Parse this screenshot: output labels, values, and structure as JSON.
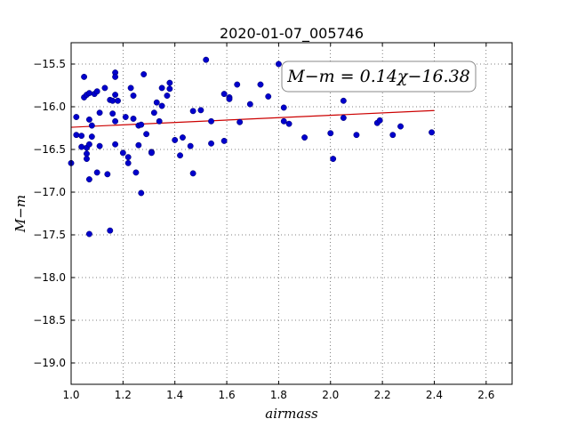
{
  "chart_data": {
    "type": "scatter",
    "title": "2020-01-07_005746",
    "xlabel": "airmass",
    "ylabel": "M−m",
    "xlim": [
      1.0,
      2.7
    ],
    "ylim": [
      -19.25,
      -15.25
    ],
    "xticks": [
      "1.0",
      "1.2",
      "1.4",
      "1.6",
      "1.8",
      "2.0",
      "2.2",
      "2.4",
      "2.6"
    ],
    "yticks": [
      "−15.5",
      "−16.0",
      "−16.5",
      "−17.0",
      "−17.5",
      "−18.0",
      "−18.5",
      "−19.0"
    ],
    "grid": true,
    "point_color": "#0000cc",
    "fit_color": "#cc0000",
    "annotation": "M−m = 0.14χ−16.38",
    "fit": {
      "slope": 0.14,
      "intercept": -16.38,
      "x_range": [
        1.0,
        2.4
      ]
    },
    "points": [
      [
        1.0,
        -16.66
      ],
      [
        1.02,
        -16.12
      ],
      [
        1.02,
        -16.33
      ],
      [
        1.04,
        -16.34
      ],
      [
        1.04,
        -16.47
      ],
      [
        1.05,
        -15.65
      ],
      [
        1.05,
        -15.89
      ],
      [
        1.06,
        -15.86
      ],
      [
        1.06,
        -16.48
      ],
      [
        1.06,
        -16.55
      ],
      [
        1.06,
        -16.61
      ],
      [
        1.07,
        -15.84
      ],
      [
        1.07,
        -16.15
      ],
      [
        1.07,
        -16.44
      ],
      [
        1.07,
        -16.85
      ],
      [
        1.08,
        -16.22
      ],
      [
        1.08,
        -16.35
      ],
      [
        1.07,
        -17.49
      ],
      [
        1.09,
        -15.85
      ],
      [
        1.1,
        -15.82
      ],
      [
        1.1,
        -16.77
      ],
      [
        1.11,
        -16.07
      ],
      [
        1.11,
        -16.46
      ],
      [
        1.13,
        -15.78
      ],
      [
        1.14,
        -16.79
      ],
      [
        1.15,
        -15.92
      ],
      [
        1.15,
        -17.45
      ],
      [
        1.16,
        -16.08
      ],
      [
        1.16,
        -15.93
      ],
      [
        1.17,
        -15.6
      ],
      [
        1.17,
        -15.65
      ],
      [
        1.17,
        -15.86
      ],
      [
        1.17,
        -16.17
      ],
      [
        1.17,
        -16.44
      ],
      [
        1.18,
        -15.93
      ],
      [
        1.2,
        -16.54
      ],
      [
        1.21,
        -16.12
      ],
      [
        1.22,
        -16.59
      ],
      [
        1.22,
        -16.66
      ],
      [
        1.23,
        -15.78
      ],
      [
        1.24,
        -15.87
      ],
      [
        1.24,
        -16.14
      ],
      [
        1.25,
        -16.77
      ],
      [
        1.26,
        -16.22
      ],
      [
        1.26,
        -16.45
      ],
      [
        1.27,
        -16.21
      ],
      [
        1.27,
        -17.01
      ],
      [
        1.28,
        -15.62
      ],
      [
        1.29,
        -16.32
      ],
      [
        1.31,
        -16.53
      ],
      [
        1.31,
        -16.54
      ],
      [
        1.32,
        -16.07
      ],
      [
        1.33,
        -15.95
      ],
      [
        1.34,
        -16.17
      ],
      [
        1.35,
        -15.99
      ],
      [
        1.35,
        -15.78
      ],
      [
        1.37,
        -15.87
      ],
      [
        1.38,
        -15.79
      ],
      [
        1.38,
        -15.72
      ],
      [
        1.4,
        -16.39
      ],
      [
        1.42,
        -16.57
      ],
      [
        1.43,
        -16.36
      ],
      [
        1.46,
        -16.46
      ],
      [
        1.47,
        -16.78
      ],
      [
        1.47,
        -16.05
      ],
      [
        1.5,
        -16.04
      ],
      [
        1.52,
        -15.45
      ],
      [
        1.54,
        -16.43
      ],
      [
        1.54,
        -16.17
      ],
      [
        1.59,
        -15.85
      ],
      [
        1.59,
        -16.4
      ],
      [
        1.61,
        -15.89
      ],
      [
        1.61,
        -15.91
      ],
      [
        1.64,
        -15.74
      ],
      [
        1.65,
        -16.18
      ],
      [
        1.69,
        -15.97
      ],
      [
        1.73,
        -15.74
      ],
      [
        1.76,
        -15.88
      ],
      [
        1.8,
        -15.5
      ],
      [
        1.82,
        -16.17
      ],
      [
        1.82,
        -16.01
      ],
      [
        1.84,
        -16.2
      ],
      [
        1.9,
        -16.36
      ],
      [
        2.0,
        -16.31
      ],
      [
        2.01,
        -16.61
      ],
      [
        2.05,
        -15.93
      ],
      [
        2.05,
        -16.13
      ],
      [
        2.1,
        -16.33
      ],
      [
        2.18,
        -16.19
      ],
      [
        2.19,
        -16.16
      ],
      [
        2.24,
        -16.33
      ],
      [
        2.27,
        -16.23
      ],
      [
        2.39,
        -16.3
      ]
    ]
  }
}
